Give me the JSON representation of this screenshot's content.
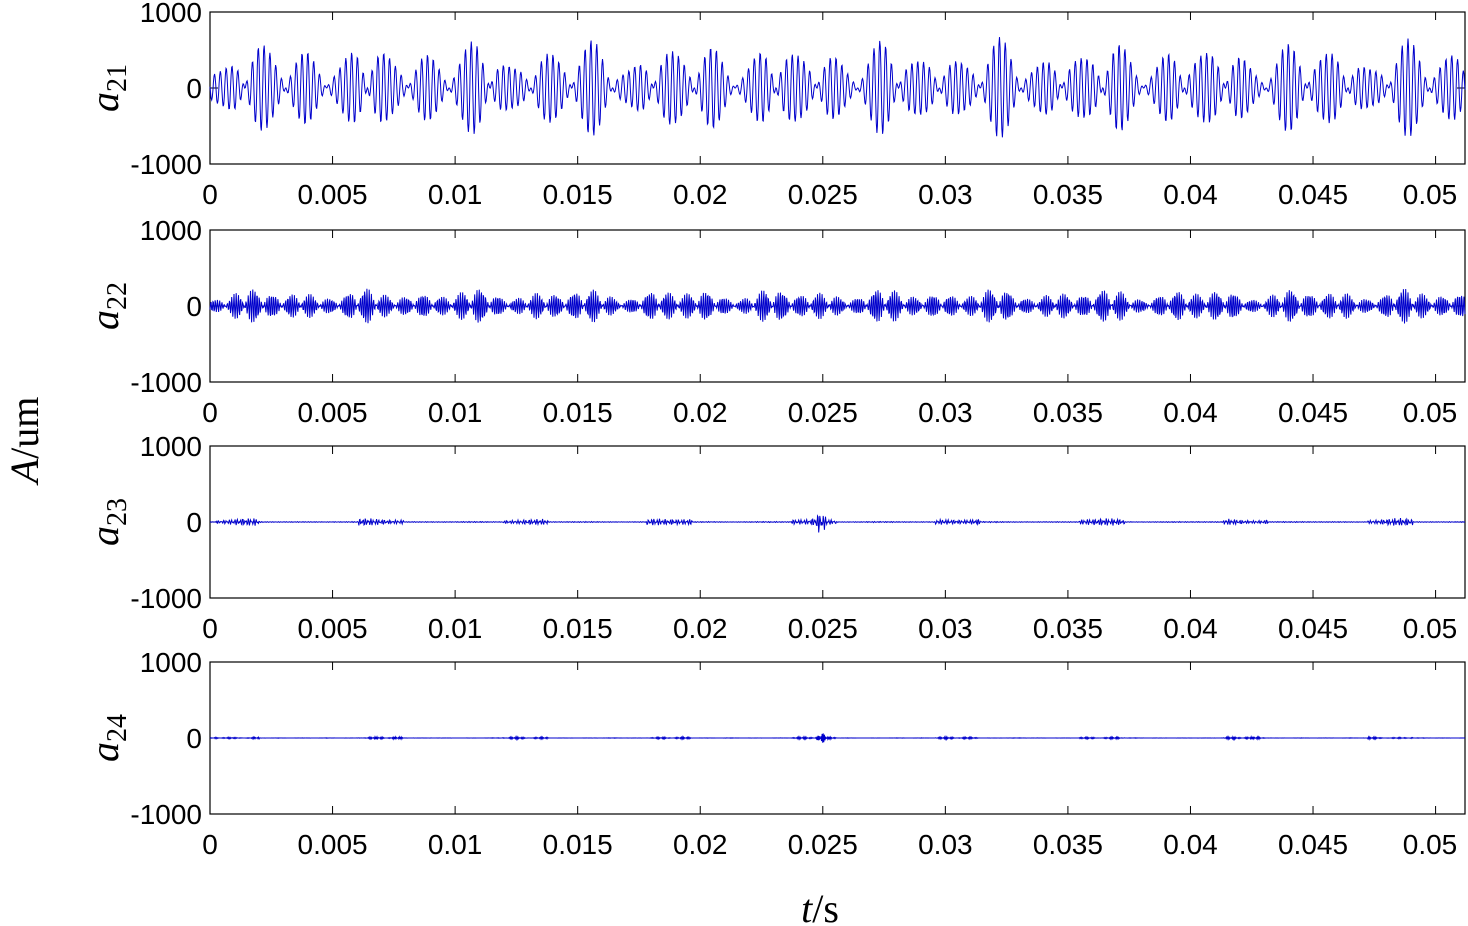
{
  "figure": {
    "ylabel_var": "A",
    "ylabel_unit": "/um",
    "xlabel_var": "t",
    "xlabel_unit": "/s",
    "line_color": "#0000CC",
    "axes_color": "#000000"
  },
  "chart_data": [
    {
      "type": "line",
      "label_base": "a",
      "label_sub": "21",
      "xlim": [
        0,
        0.0512
      ],
      "ylim": [
        -1000,
        1000
      ],
      "yticks": [
        "1000",
        "0",
        "-1000"
      ],
      "xticks": [
        "0",
        "0.005",
        "0.01",
        "0.015",
        "0.02",
        "0.025",
        "0.03",
        "0.035",
        "0.04",
        "0.045",
        "0.05"
      ],
      "amplitude_approx": 500,
      "peak_max_approx": 830,
      "peak_min_approx": -650,
      "note_dense_oscillation": true,
      "series": [
        {
          "values_estimated": "dense oscillation, roughly ±500 um envelope with bursts to ~800"
        }
      ]
    },
    {
      "type": "line",
      "label_base": "a",
      "label_sub": "22",
      "xlim": [
        0,
        0.0512
      ],
      "ylim": [
        -1000,
        1000
      ],
      "yticks": [
        "1000",
        "0",
        "-1000"
      ],
      "xticks": [
        "0",
        "0.005",
        "0.01",
        "0.015",
        "0.02",
        "0.025",
        "0.03",
        "0.035",
        "0.04",
        "0.045",
        "0.05"
      ],
      "amplitude_approx": 180,
      "peak_max_approx": 280,
      "peak_min_approx": -300,
      "series": [
        {
          "values_estimated": "dense high-frequency oscillation, ~±150 um"
        }
      ]
    },
    {
      "type": "line",
      "label_base": "a",
      "label_sub": "23",
      "xlim": [
        0,
        0.0512
      ],
      "ylim": [
        -1000,
        1000
      ],
      "yticks": [
        "1000",
        "0",
        "-1000"
      ],
      "xticks": [
        "0",
        "0.005",
        "0.01",
        "0.015",
        "0.02",
        "0.025",
        "0.03",
        "0.035",
        "0.04",
        "0.045",
        "0.05"
      ],
      "amplitude_approx": 40,
      "peak_max_approx": 80,
      "peak_min_approx": -170,
      "series": [
        {
          "values_estimated": "near zero with small bursts, spike near t=0.025"
        }
      ]
    },
    {
      "type": "line",
      "label_base": "a",
      "label_sub": "24",
      "xlim": [
        0,
        0.0512
      ],
      "ylim": [
        -1000,
        1000
      ],
      "yticks": [
        "1000",
        "0",
        "-1000"
      ],
      "xticks": [
        "0",
        "0.005",
        "0.01",
        "0.015",
        "0.02",
        "0.025",
        "0.03",
        "0.035",
        "0.04",
        "0.045",
        "0.05"
      ],
      "amplitude_approx": 15,
      "peak_max_approx": 60,
      "peak_min_approx": -90,
      "series": [
        {
          "values_estimated": "near zero fine noise, small spike near t=0.025"
        }
      ]
    }
  ]
}
